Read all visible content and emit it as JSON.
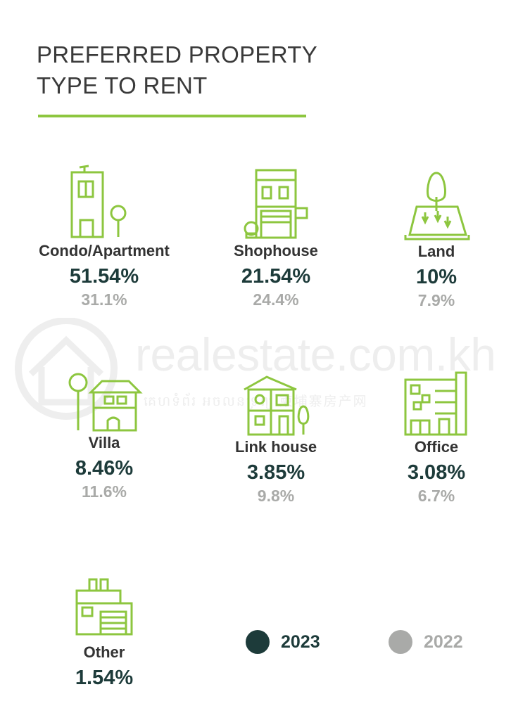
{
  "title": {
    "line1": "PREFERRED PROPERTY",
    "line2": "TYPE TO RENT"
  },
  "watermark": {
    "text": "realestate.com.kh",
    "subtext": "គេហទំព័រ អចលនទ្រព្យ   柬埔寨房产网"
  },
  "colors": {
    "accent": "#8dc63f",
    "series_2023": "#1d3b3a",
    "series_2022": "#a9aaa8"
  },
  "items": [
    {
      "label": "Condo/Apartment",
      "v2023": "51.54%",
      "v2022": "31.1%",
      "icon": "condo-icon"
    },
    {
      "label": "Shophouse",
      "v2023": "21.54%",
      "v2022": "24.4%",
      "icon": "shophouse-icon"
    },
    {
      "label": "Land",
      "v2023": "10%",
      "v2022": "7.9%",
      "icon": "land-icon"
    },
    {
      "label": "Villa",
      "v2023": "8.46%",
      "v2022": "11.6%",
      "icon": "villa-icon"
    },
    {
      "label": "Link house",
      "v2023": "3.85%",
      "v2022": "9.8%",
      "icon": "link-house-icon"
    },
    {
      "label": "Office",
      "v2023": "3.08%",
      "v2022": "6.7%",
      "icon": "office-icon"
    },
    {
      "label": "Other",
      "v2023": "1.54%",
      "v2022": "",
      "icon": "other-building-icon"
    }
  ],
  "legend": [
    {
      "label": "2023",
      "color": "#1d3b3a"
    },
    {
      "label": "2022",
      "color": "#a9aaa8"
    }
  ],
  "chart_data": {
    "type": "table",
    "title": "PREFERRED PROPERTY TYPE TO RENT",
    "categories": [
      "Condo/Apartment",
      "Shophouse",
      "Land",
      "Villa",
      "Link house",
      "Office",
      "Other"
    ],
    "series": [
      {
        "name": "2023",
        "values": [
          51.54,
          21.54,
          10,
          8.46,
          3.85,
          3.08,
          1.54
        ]
      },
      {
        "name": "2022",
        "values": [
          31.1,
          24.4,
          7.9,
          11.6,
          9.8,
          6.7,
          null
        ]
      }
    ],
    "unit": "%",
    "legend_position": "bottom-right"
  }
}
